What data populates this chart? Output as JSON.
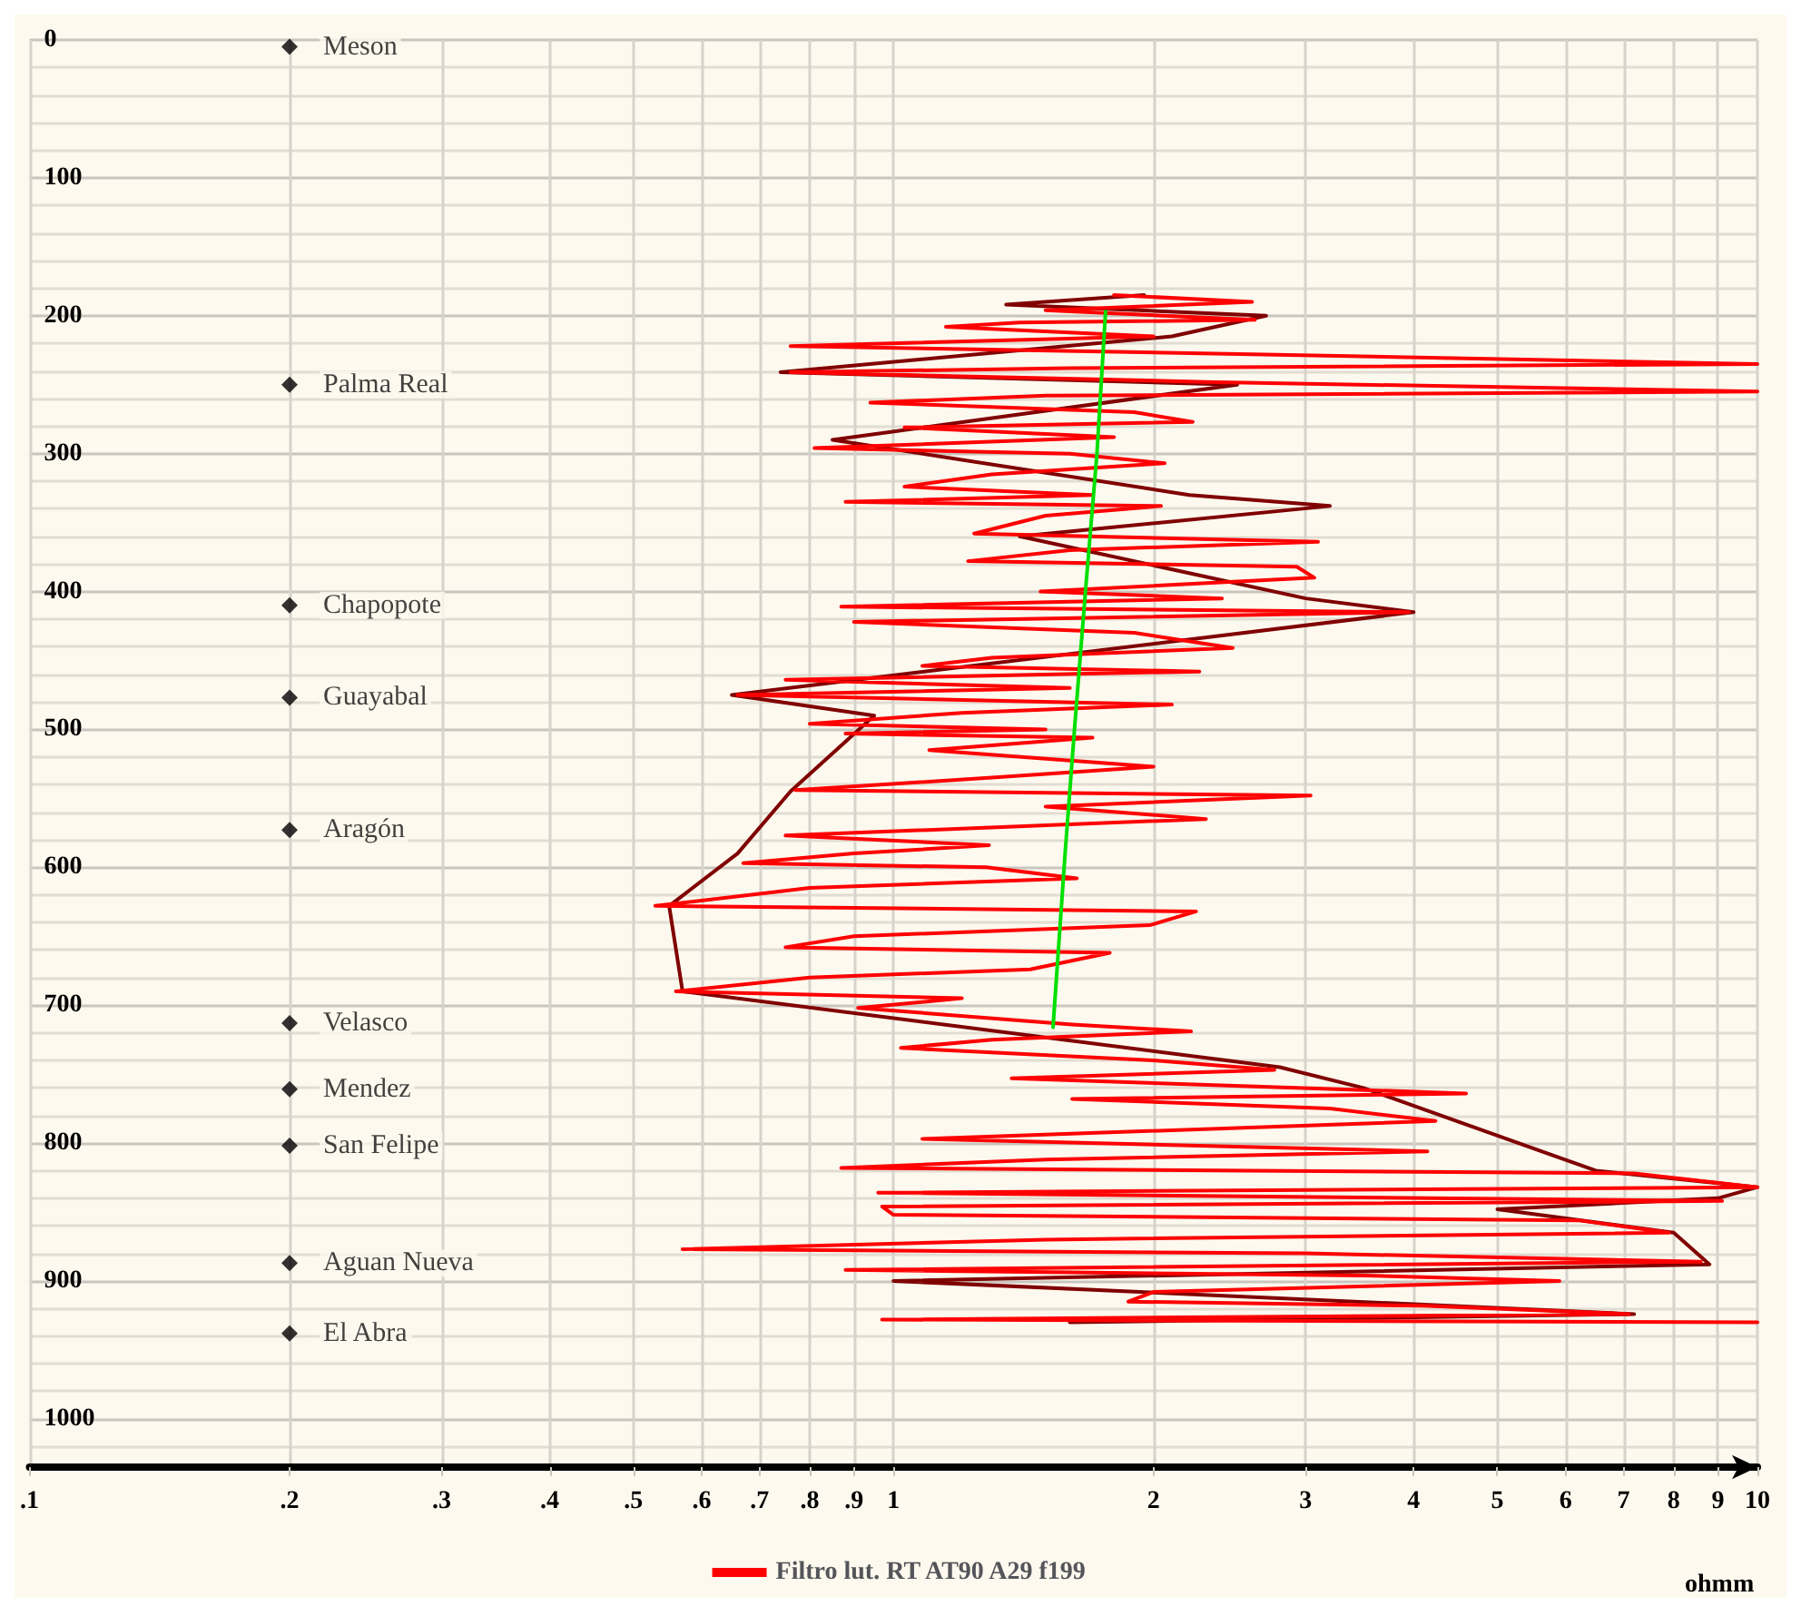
{
  "chart_data": {
    "type": "line",
    "xlabel": "ohmm",
    "log": "x",
    "grid": true,
    "legend": "bottom",
    "xlim": [
      0.1,
      10
    ],
    "ylim": [
      1035,
      0
    ],
    "xticks": [
      {
        "value": 0.1,
        "label": ".1"
      },
      {
        "value": 0.2,
        "label": ".2"
      },
      {
        "value": 0.3,
        "label": ".3"
      },
      {
        "value": 0.4,
        "label": ".4"
      },
      {
        "value": 0.5,
        "label": ".5"
      },
      {
        "value": 0.6,
        "label": ".6"
      },
      {
        "value": 0.7,
        "label": ".7"
      },
      {
        "value": 0.8,
        "label": ".8"
      },
      {
        "value": 0.9,
        "label": ".9"
      },
      1,
      2,
      3,
      4,
      5,
      6,
      7,
      8,
      9,
      10
    ],
    "yticks": [
      0,
      {
        "value": 20,
        "label": null
      },
      {
        "value": 40,
        "label": null
      },
      {
        "value": 60,
        "label": null
      },
      {
        "value": 80,
        "label": null
      },
      100,
      {
        "value": 120,
        "label": null
      },
      {
        "value": 140,
        "label": null
      },
      {
        "value": 160,
        "label": null
      },
      {
        "value": 180,
        "label": null
      },
      200,
      {
        "value": 220,
        "label": null
      },
      {
        "value": 240,
        "label": null
      },
      {
        "value": 260,
        "label": null
      },
      {
        "value": 280,
        "label": null
      },
      300,
      {
        "value": 320,
        "label": null
      },
      {
        "value": 340,
        "label": null
      },
      {
        "value": 360,
        "label": null
      },
      {
        "value": 380,
        "label": null
      },
      400,
      {
        "value": 420,
        "label": null
      },
      {
        "value": 440,
        "label": null
      },
      {
        "value": 460,
        "label": null
      },
      {
        "value": 480,
        "label": null
      },
      500,
      {
        "value": 520,
        "label": null
      },
      {
        "value": 540,
        "label": null
      },
      {
        "value": 560,
        "label": null
      },
      {
        "value": 580,
        "label": null
      },
      600,
      {
        "value": 620,
        "label": null
      },
      {
        "value": 640,
        "label": null
      },
      {
        "value": 660,
        "label": null
      },
      {
        "value": 680,
        "label": null
      },
      700,
      {
        "value": 720,
        "label": null
      },
      {
        "value": 740,
        "label": null
      },
      {
        "value": 760,
        "label": null
      },
      {
        "value": 780,
        "label": null
      },
      800,
      {
        "value": 820,
        "label": null
      },
      {
        "value": 840,
        "label": null
      },
      {
        "value": 860,
        "label": null
      },
      {
        "value": 880,
        "label": null
      },
      900,
      {
        "value": 920,
        "label": null
      },
      {
        "value": 940,
        "label": null
      },
      {
        "value": 960,
        "label": null
      },
      {
        "value": 980,
        "label": null
      },
      1000,
      {
        "value": 1020,
        "label": null
      }
    ],
    "series": [
      {
        "color": "#800000",
        "x": [
          1.95,
          1.35,
          2.7,
          2.1,
          0.74,
          2.5,
          0.85,
          2.2,
          3.2,
          1.4,
          3.0,
          4.0,
          0.65,
          0.95,
          0.76,
          0.66,
          0.55,
          0.57,
          2.8,
          3.5,
          6.5,
          10,
          9.0,
          5.0,
          8.0,
          8.8,
          1.0,
          7.2,
          1.6
        ],
        "values": [
          185,
          192,
          200,
          215,
          241,
          250,
          290,
          330,
          338,
          360,
          405,
          415,
          475,
          490,
          545,
          590,
          628,
          690,
          745,
          760,
          820,
          832,
          840,
          848,
          865,
          888,
          900,
          924,
          930
        ]
      },
      {
        "name": "Filtro lut. RT AT90 A29 f199",
        "color": "#ff0000",
        "x": [
          1.8,
          2.6,
          1.5,
          2.62,
          1.4,
          1.15,
          2.0,
          0.76,
          2.6,
          10,
          1.6,
          0.76,
          2.3,
          10,
          1.5,
          0.94,
          1.9,
          2.22,
          1.03,
          1.8,
          0.81,
          1.6,
          2.06,
          1.3,
          1.03,
          1.7,
          0.88,
          2.04,
          1.5,
          1.24,
          3.1,
          1.6,
          1.22,
          2.93,
          3.07,
          1.48,
          2.4,
          0.87,
          3.95,
          0.9,
          1.9,
          2.47,
          1.3,
          1.08,
          2.26,
          0.75,
          1.6,
          0.66,
          2.1,
          1.2,
          0.8,
          1.5,
          0.88,
          1.7,
          1.1,
          2.0,
          1.3,
          0.77,
          3.04,
          1.5,
          2.3,
          0.75,
          1.29,
          0.9,
          0.67,
          1.28,
          1.63,
          0.8,
          0.53,
          2.24,
          1.98,
          0.9,
          0.75,
          1.78,
          1.44,
          0.8,
          0.56,
          1.2,
          0.91,
          1.61,
          2.21,
          1.3,
          1.02,
          2.0,
          2.76,
          1.37,
          4.6,
          1.61,
          3.2,
          4.24,
          1.08,
          4.15,
          1.5,
          0.87,
          7.2,
          10,
          0.96,
          9.1,
          0.97,
          1.0,
          6.2,
          7.9,
          1.5,
          0.57,
          3.0,
          8.6,
          0.88,
          3.5,
          5.9,
          2.0,
          1.87,
          4.1,
          7.1,
          0.97,
          10
        ],
        "values": [
          185,
          190,
          196,
          203,
          205,
          208,
          215,
          222,
          228,
          235,
          238,
          241,
          248,
          255,
          258,
          263,
          270,
          277,
          281,
          288,
          296,
          300,
          307,
          315,
          324,
          330,
          335,
          338,
          345,
          358,
          364,
          370,
          378,
          382,
          390,
          400,
          405,
          411,
          415,
          422,
          430,
          441,
          448,
          454,
          458,
          464,
          470,
          475,
          482,
          488,
          496,
          500,
          503,
          506,
          515,
          527,
          535,
          544,
          548,
          556,
          565,
          577,
          584,
          590,
          597,
          600,
          608,
          615,
          628,
          632,
          642,
          650,
          658,
          662,
          674,
          680,
          690,
          695,
          702,
          714,
          719,
          725,
          731,
          740,
          747,
          753,
          764,
          768,
          775,
          784,
          797,
          806,
          812,
          818,
          822,
          832,
          836,
          842,
          846,
          852,
          856,
          865,
          870,
          877,
          880,
          886,
          892,
          896,
          900,
          908,
          915,
          918,
          924,
          928,
          930
        ]
      },
      {
        "color": "#00e000",
        "x": [
          1.76,
          1.72,
          1.67,
          1.62,
          1.58,
          1.53
        ],
        "values": [
          197,
          300,
          396,
          500,
          590,
          716
        ]
      },
      {
        "type": "scatter",
        "color": "#000000",
        "marker": "diamond",
        "x": [
          0.2,
          0.2,
          0.2,
          0.2,
          0.2,
          0.2,
          0.2,
          0.2,
          0.2,
          0.2
        ],
        "values": [
          5,
          250,
          410,
          477,
          573,
          713,
          761,
          802,
          887,
          938
        ]
      }
    ],
    "annotations": [
      "Meson",
      "Palma Real",
      "Chapopote",
      "Guayabal",
      "Aragón",
      "Velasco",
      "Mendez",
      "San Felipe",
      "Aguan Nueva",
      "El Abra"
    ]
  }
}
